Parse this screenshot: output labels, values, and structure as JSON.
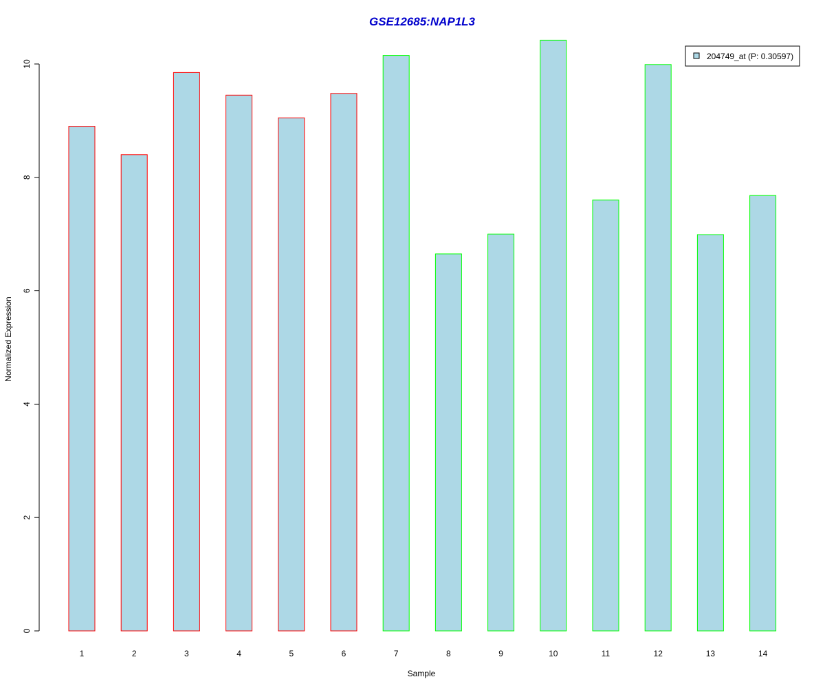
{
  "chart_data": {
    "type": "bar",
    "title": "GSE12685:NAP1L3",
    "xlabel": "Sample",
    "ylabel": "Normalized Expression",
    "categories": [
      "1",
      "2",
      "3",
      "4",
      "5",
      "6",
      "7",
      "8",
      "9",
      "10",
      "11",
      "12",
      "13",
      "14"
    ],
    "series": [
      {
        "name": "204749_at (P: 0.30597)",
        "values": [
          8.9,
          8.4,
          9.85,
          9.45,
          9.05,
          9.48,
          10.15,
          6.65,
          7.0,
          10.42,
          7.6,
          9.99,
          6.99,
          7.68
        ]
      }
    ],
    "yticks": [
      "0",
      "2",
      "4",
      "6",
      "8",
      "10"
    ],
    "ylim": [
      0,
      10.42
    ],
    "grid": false,
    "legend_position": "top-right",
    "colors": {
      "fill": "#add8e6",
      "title": "#0000cc",
      "group_1_border": "#ff0000",
      "group_2_border": "#00ff00"
    },
    "bar_border_groups": [
      "group_1_border",
      "group_1_border",
      "group_1_border",
      "group_1_border",
      "group_1_border",
      "group_1_border",
      "group_2_border",
      "group_2_border",
      "group_2_border",
      "group_2_border",
      "group_2_border",
      "group_2_border",
      "group_2_border",
      "group_2_border"
    ]
  }
}
